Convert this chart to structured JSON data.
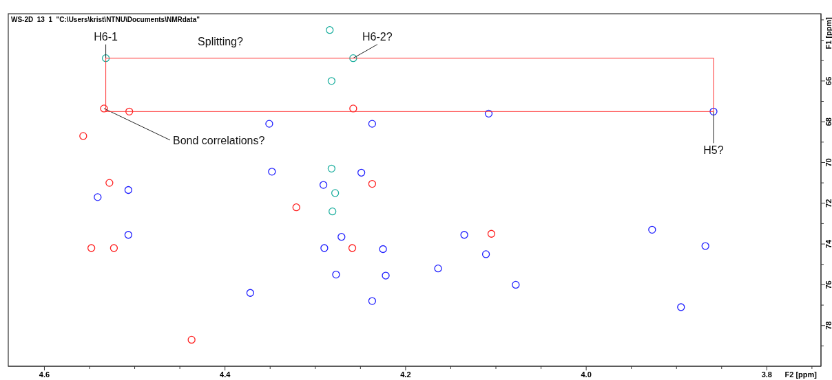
{
  "chart_data": {
    "type": "scatter",
    "title": "WS-2D  13  1  \"C:\\Users\\krist\\NTNU\\Documents\\NMRdata\"",
    "xlabel": "F2 [ppm]",
    "ylabel": "F1 [ppm]",
    "marker": "circle",
    "grid": false,
    "xlim": [
      4.64,
      3.74
    ],
    "ylim": [
      80.0,
      62.7
    ],
    "xticks": [
      {
        "value": 4.6,
        "label": "4.6"
      },
      {
        "value": 4.55,
        "label": null
      },
      {
        "value": 4.5,
        "label": null
      },
      {
        "value": 4.45,
        "label": null
      },
      {
        "value": 4.4,
        "label": "4.4"
      },
      {
        "value": 4.35,
        "label": null
      },
      {
        "value": 4.3,
        "label": null
      },
      {
        "value": 4.25,
        "label": null
      },
      {
        "value": 4.2,
        "label": "4.2"
      },
      {
        "value": 4.15,
        "label": null
      },
      {
        "value": 4.1,
        "label": null
      },
      {
        "value": 4.05,
        "label": null
      },
      {
        "value": 4.0,
        "label": "4.0"
      },
      {
        "value": 3.95,
        "label": null
      },
      {
        "value": 3.9,
        "label": null
      },
      {
        "value": 3.85,
        "label": null
      },
      {
        "value": 3.8,
        "label": "3.8"
      },
      {
        "value": 3.75,
        "label": null
      }
    ],
    "yticks": [
      {
        "value": 63,
        "label": null
      },
      {
        "value": 64,
        "label": null
      },
      {
        "value": 65,
        "label": null
      },
      66,
      {
        "value": 67,
        "label": null
      },
      68,
      {
        "value": 69,
        "label": null
      },
      70,
      {
        "value": 71,
        "label": null
      },
      72,
      {
        "value": 73,
        "label": null
      },
      74,
      {
        "value": 75,
        "label": null
      },
      76,
      {
        "value": 77,
        "label": null
      },
      78,
      {
        "value": 79,
        "label": null
      }
    ],
    "series": [
      {
        "color": "#2020ff",
        "x": [
          4.351,
          4.237,
          4.348,
          4.291,
          4.541,
          4.507,
          4.249,
          4.507,
          4.29,
          4.225,
          4.277,
          4.222,
          4.372,
          4.237,
          4.271,
          3.859,
          4.108,
          3.927,
          3.868,
          4.135,
          4.111,
          4.164,
          4.078,
          3.895
        ],
        "values": [
          68.1,
          68.1,
          70.45,
          71.1,
          71.7,
          71.35,
          70.5,
          73.55,
          74.2,
          74.25,
          75.5,
          75.55,
          76.4,
          76.8,
          73.65,
          67.5,
          67.6,
          73.3,
          74.1,
          73.55,
          74.5,
          75.2,
          76.0,
          77.1
        ]
      },
      {
        "color": "#ff2020",
        "x": [
          4.534,
          4.258,
          4.528,
          4.237,
          4.321,
          4.548,
          4.523,
          4.259,
          4.506,
          4.557,
          4.437,
          4.105
        ],
        "values": [
          67.35,
          67.35,
          71.0,
          71.05,
          72.2,
          74.2,
          74.2,
          74.2,
          67.5,
          68.7,
          78.7,
          73.5
        ]
      },
      {
        "color": "#20b0a0",
        "x": [
          4.532,
          4.258,
          4.282,
          4.282,
          4.278,
          4.281,
          4.284
        ],
        "values": [
          64.88,
          64.88,
          66.0,
          70.3,
          71.5,
          72.4,
          63.5
        ]
      }
    ],
    "annotations": [
      {
        "text": "H6-1",
        "x": 4.532,
        "y": 64.88
      },
      {
        "text": "H6-2?",
        "x": 4.258,
        "y": 64.88
      },
      {
        "text": "H5?",
        "x": 3.859,
        "y": 67.5
      },
      {
        "text": "Bond correlations?",
        "x": 4.534,
        "y": 67.35
      },
      "Splitting?"
    ]
  }
}
